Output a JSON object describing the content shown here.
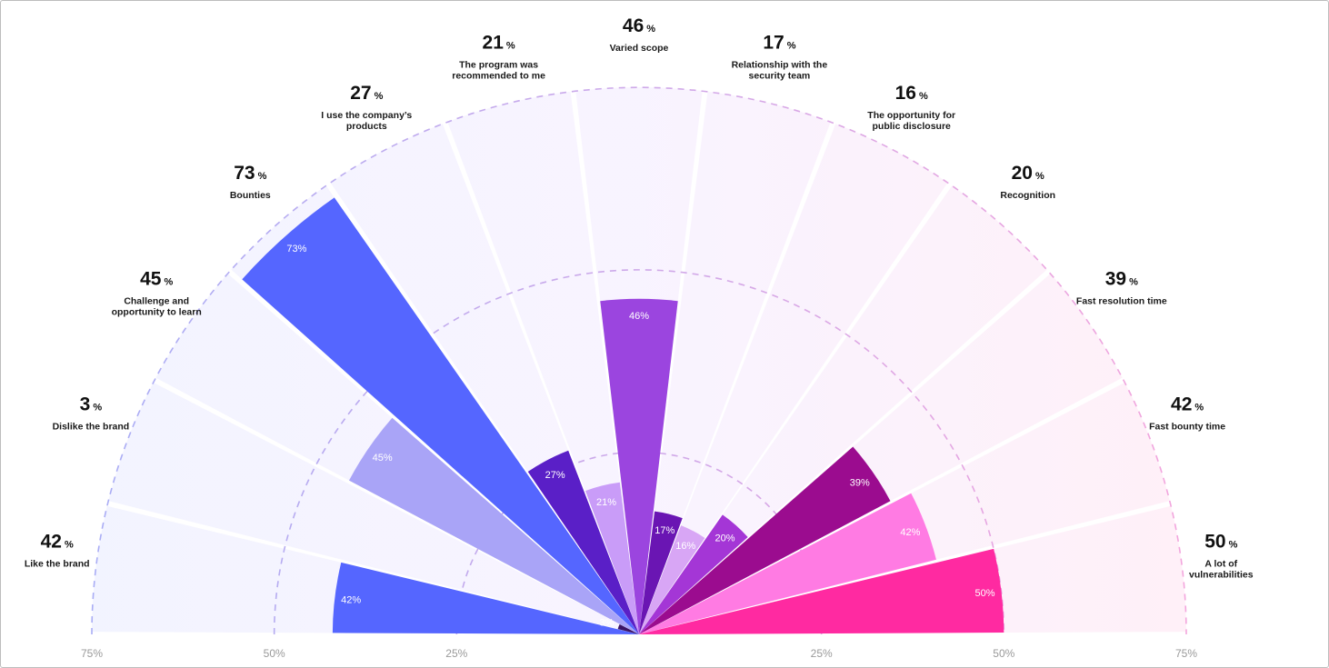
{
  "chart_data": {
    "type": "radial-bar",
    "unit": "%",
    "axis_ticks_left": [
      "75%",
      "50%",
      "25%"
    ],
    "axis_ticks_right": [
      "25%",
      "50%",
      "75%"
    ],
    "axis_max": 75,
    "gridlines": [
      25,
      50,
      75
    ],
    "categories": [
      {
        "label": "Like the brand",
        "value": 42,
        "color": "#5566ff"
      },
      {
        "label": "Dislike the brand",
        "value": 3,
        "color": "#3b1466"
      },
      {
        "label": "Challenge and opportunity to learn",
        "value": 45,
        "color": "#a9a4f7"
      },
      {
        "label": "Bounties",
        "value": 73,
        "color": "#5566ff"
      },
      {
        "label": "I use the company’s products",
        "value": 27,
        "color": "#5a1fc7"
      },
      {
        "label": "The program was recommended to me",
        "value": 21,
        "color": "#c99cf8"
      },
      {
        "label": "Varied scope",
        "value": 46,
        "color": "#9b45df"
      },
      {
        "label": "Relationship with the security team",
        "value": 17,
        "color": "#6a15b3"
      },
      {
        "label": "The opportunity for public disclosure",
        "value": 16,
        "color": "#d8a6f5"
      },
      {
        "label": "Recognition",
        "value": 20,
        "color": "#a436d6"
      },
      {
        "label": "Fast resolution time",
        "value": 39,
        "color": "#9b0c8f"
      },
      {
        "label": "Fast bounty time",
        "value": 42,
        "color": "#ff7be3"
      },
      {
        "label": "A lot of vulnerabilities",
        "value": 50,
        "color": "#ff2aa1"
      }
    ]
  }
}
